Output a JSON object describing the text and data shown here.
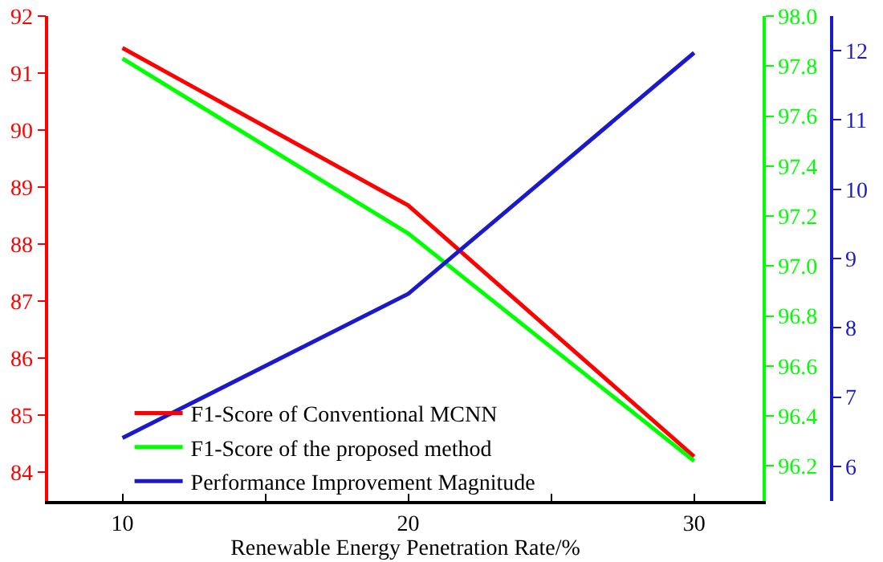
{
  "chart_data": {
    "type": "line",
    "xlabel": "Renewable Energy Penetration Rate/%",
    "x": [
      10,
      20,
      30
    ],
    "xlim": [
      7.4,
      32.4
    ],
    "xticks": [
      10,
      {
        "value": 15,
        "label": null
      },
      20,
      {
        "value": 25,
        "label": null
      },
      30
    ],
    "ylim": [
      83.5,
      92
    ],
    "yticks": [
      84,
      85,
      86,
      87,
      88,
      89,
      90,
      91,
      92
    ],
    "y2lim": [
      96.06,
      98.0
    ],
    "y2ticks": [
      {
        "value": 96.2,
        "label": "96.2"
      },
      {
        "value": 96.4,
        "label": "96.4"
      },
      {
        "value": 96.6,
        "label": "96.6"
      },
      {
        "value": 96.8,
        "label": "96.8"
      },
      {
        "value": 97.0,
        "label": "97.0"
      },
      {
        "value": 97.2,
        "label": "97.2"
      },
      {
        "value": 97.4,
        "label": "97.4"
      },
      {
        "value": 97.6,
        "label": "97.6"
      },
      {
        "value": 97.8,
        "label": "97.8"
      },
      {
        "value": 98.0,
        "label": "98.0"
      }
    ],
    "y3lim": [
      5.5,
      12.5
    ],
    "y3ticks": [
      6,
      7,
      8,
      9,
      10,
      11,
      12
    ],
    "series": [
      {
        "name": "F1-Score of Conventional MCNN",
        "color": "#ff0000",
        "values": [
          91.44,
          88.68,
          84.28
        ]
      },
      {
        "name": "F1-Score of the proposed method",
        "color": "#00ff00",
        "axis": "y2",
        "values": [
          97.83,
          97.13,
          96.22
        ]
      },
      {
        "name": "Performance Improvement Magnitude",
        "color": "#1a1acc",
        "axis": "y3",
        "values": [
          6.41,
          8.49,
          11.97
        ]
      }
    ],
    "legend": "bottom left",
    "grid": false,
    "marker": "none",
    "line_style": "solid"
  }
}
